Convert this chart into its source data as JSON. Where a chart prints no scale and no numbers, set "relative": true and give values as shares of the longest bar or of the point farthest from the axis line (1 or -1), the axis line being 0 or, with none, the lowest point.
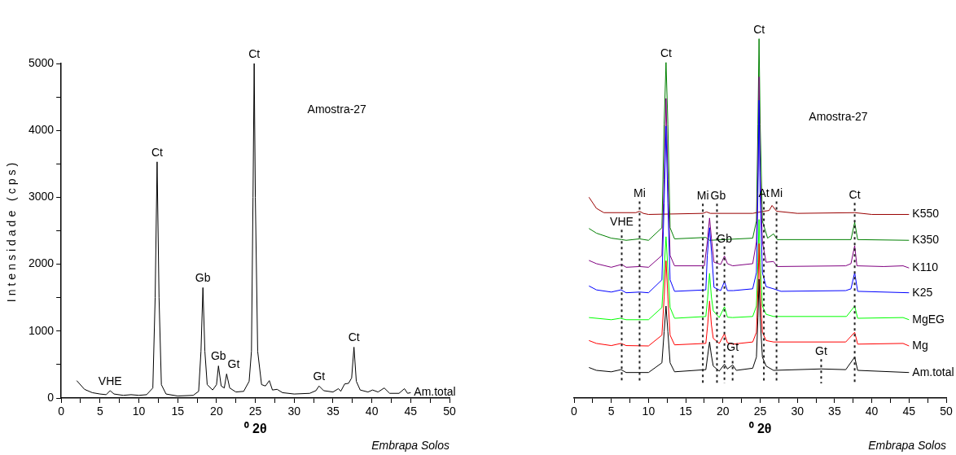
{
  "chart_data": [
    {
      "type": "line",
      "xlabel": "⁰ 2θ",
      "ylabel": "Intensidade (cps)",
      "xlim": [
        0,
        50
      ],
      "ylim": [
        0,
        5000
      ],
      "xticks": [
        0,
        {
          "value": 2.5,
          "label": null
        },
        5,
        {
          "value": 7.5,
          "label": null
        },
        10,
        {
          "value": 12.5,
          "label": null
        },
        15,
        {
          "value": 17.5,
          "label": null
        },
        20,
        {
          "value": 22.5,
          "label": null
        },
        25,
        {
          "value": 27.5,
          "label": null
        },
        30,
        {
          "value": 32.5,
          "label": null
        },
        35,
        {
          "value": 37.5,
          "label": null
        },
        40,
        {
          "value": 42.5,
          "label": null
        },
        45,
        {
          "value": 47.5,
          "label": null
        },
        50
      ],
      "yticks": [
        0,
        {
          "value": 500,
          "label": null
        },
        1000,
        {
          "value": 1500,
          "label": null
        },
        2000,
        {
          "value": 2500,
          "label": null
        },
        3000,
        {
          "value": 3500,
          "label": null
        },
        4000,
        {
          "value": 4500,
          "label": null
        },
        5000
      ],
      "grid": false,
      "legend": false,
      "marker": "none",
      "line_style": "solid",
      "series": [
        {
          "name": "Am.total",
          "color": "#000000",
          "x": [
            2,
            3,
            4,
            5,
            5.8,
            6.3,
            6.8,
            8,
            9,
            10,
            11,
            11.8,
            12.1,
            12.35,
            12.6,
            12.9,
            13.5,
            15,
            17,
            17.7,
            18,
            18.25,
            18.5,
            18.8,
            19.5,
            20,
            20.25,
            20.6,
            21,
            21.3,
            21.7,
            22.5,
            23.5,
            24.2,
            24.5,
            24.7,
            24.85,
            25,
            25.3,
            25.8,
            26.3,
            26.8,
            27.2,
            27.8,
            28.5,
            30,
            32,
            32.8,
            33.2,
            33.8,
            35,
            35.7,
            36,
            36.5,
            37,
            37.4,
            37.7,
            38,
            38.5,
            39.5,
            40.1,
            40.8,
            41.6,
            42.3,
            43.5,
            44.2,
            44.6,
            45
          ],
          "values": [
            260,
            130,
            80,
            60,
            50,
            110,
            60,
            40,
            50,
            40,
            50,
            150,
            1500,
            3530,
            1500,
            200,
            60,
            30,
            40,
            100,
            700,
            1650,
            700,
            200,
            120,
            200,
            480,
            180,
            150,
            360,
            150,
            90,
            100,
            250,
            700,
            3000,
            5000,
            3000,
            700,
            200,
            180,
            260,
            120,
            130,
            80,
            60,
            70,
            110,
            180,
            110,
            90,
            140,
            100,
            210,
            220,
            300,
            760,
            250,
            120,
            90,
            120,
            90,
            150,
            70,
            70,
            140,
            70,
            80
          ]
        }
      ],
      "annotations": [
        "Amostra-27",
        "Embrapa Solos",
        {
          "text": "VHE",
          "x": 6.3,
          "y": 110
        },
        {
          "text": "Ct",
          "x": 12.35,
          "y": 3530
        },
        {
          "text": "Gb",
          "x": 18.25,
          "y": 1650
        },
        {
          "text": "Gb",
          "x": 20.25,
          "y": 480
        },
        {
          "text": "Gt",
          "x": 21.3,
          "y": 360
        },
        {
          "text": "Ct",
          "x": 24.85,
          "y": 5000
        },
        {
          "text": "Gt",
          "x": 33.2,
          "y": 180
        },
        {
          "text": "Ct",
          "x": 37.7,
          "y": 760
        }
      ]
    },
    {
      "type": "line",
      "xlabel": "⁰ 2θ",
      "relative": true,
      "xlim": [
        0,
        50
      ],
      "xticks": [
        0,
        {
          "value": 2.5,
          "label": null
        },
        5,
        {
          "value": 7.5,
          "label": null
        },
        10,
        {
          "value": 12.5,
          "label": null
        },
        15,
        {
          "value": 17.5,
          "label": null
        },
        20,
        {
          "value": 22.5,
          "label": null
        },
        25,
        {
          "value": 27.5,
          "label": null
        },
        30,
        {
          "value": 32.5,
          "label": null
        },
        35,
        {
          "value": 37.5,
          "label": null
        },
        40,
        {
          "value": 42.5,
          "label": null
        },
        45,
        {
          "value": 47.5,
          "label": null
        },
        50
      ],
      "grid": false,
      "legend": false,
      "marker": "none",
      "line_style": "solid",
      "series": [
        {
          "name": "K550",
          "color": "#990000",
          "x": [
            2,
            3,
            4,
            8.3,
            8.8,
            9.3,
            10,
            17.3,
            17.8,
            18.3,
            19.2,
            24,
            25.5,
            26.2,
            26.6,
            27.2,
            30,
            37.7,
            40,
            45
          ],
          "values": [
            0.559,
            0.528,
            0.516,
            0.516,
            0.52,
            0.514,
            0.511,
            0.514,
            0.518,
            0.514,
            0.514,
            0.514,
            0.52,
            0.522,
            0.536,
            0.52,
            0.514,
            0.516,
            0.511,
            0.511
          ]
        },
        {
          "name": "K350",
          "color": "#008000",
          "x": [
            2,
            3,
            5,
            6.4,
            7,
            8.8,
            10,
            11.8,
            12.1,
            12.35,
            12.6,
            12.9,
            13.5,
            17.7,
            18.2,
            24,
            24.5,
            24.7,
            24.85,
            25,
            25.3,
            26,
            26.8,
            27.3,
            37.2,
            37.7,
            38.1,
            45
          ],
          "values": [
            0.472,
            0.459,
            0.445,
            0.441,
            0.439,
            0.443,
            0.439,
            0.474,
            0.763,
            0.934,
            0.763,
            0.474,
            0.443,
            0.447,
            0.439,
            0.445,
            0.493,
            0.763,
            1,
            0.763,
            0.493,
            0.445,
            0.457,
            0.441,
            0.441,
            0.489,
            0.441,
            0.439
          ]
        },
        {
          "name": "K110",
          "color": "#800080",
          "x": [
            2,
            3,
            5,
            6.4,
            7,
            8.8,
            10,
            11.8,
            12.1,
            12.35,
            12.6,
            12.9,
            13.5,
            17.5,
            17.9,
            18.2,
            18.5,
            18.8,
            19.7,
            20.2,
            20.6,
            21.3,
            24,
            24.5,
            24.7,
            24.85,
            25,
            25.3,
            25.8,
            26.8,
            27.3,
            36.5,
            37.2,
            37.7,
            38,
            41.6,
            44.2,
            45
          ],
          "values": [
            0.383,
            0.374,
            0.364,
            0.372,
            0.364,
            0.366,
            0.364,
            0.397,
            0.609,
            0.834,
            0.609,
            0.397,
            0.368,
            0.368,
            0.435,
            0.501,
            0.435,
            0.378,
            0.372,
            0.395,
            0.374,
            0.368,
            0.374,
            0.435,
            0.628,
            0.894,
            0.628,
            0.435,
            0.378,
            0.38,
            0.366,
            0.368,
            0.374,
            0.424,
            0.368,
            0.366,
            0.368,
            0.362
          ]
        },
        {
          "name": "K25",
          "color": "#0000ff",
          "x": [
            2,
            3,
            5,
            6.3,
            7,
            8.8,
            10,
            11.8,
            12.1,
            12.35,
            12.6,
            12.9,
            13.5,
            17.7,
            17.9,
            18.2,
            18.5,
            18.8,
            19.7,
            20.2,
            20.6,
            21.4,
            24,
            24.5,
            24.7,
            24.85,
            25,
            25.3,
            25.8,
            26.8,
            27.8,
            36.5,
            37.2,
            37.7,
            38.1,
            45
          ],
          "values": [
            0.312,
            0.301,
            0.295,
            0.301,
            0.293,
            0.295,
            0.293,
            0.329,
            0.543,
            0.757,
            0.543,
            0.329,
            0.297,
            0.301,
            0.397,
            0.474,
            0.397,
            0.308,
            0.299,
            0.324,
            0.299,
            0.299,
            0.304,
            0.349,
            0.57,
            0.829,
            0.57,
            0.349,
            0.31,
            0.304,
            0.297,
            0.299,
            0.304,
            0.349,
            0.297,
            0.293
          ]
        },
        {
          "name": "MgEG",
          "color": "#00ff00",
          "x": [
            2,
            5,
            6.2,
            7,
            10,
            11.8,
            12.1,
            12.35,
            12.6,
            12.9,
            13.5,
            17.7,
            17.95,
            18.2,
            18.45,
            18.7,
            19.5,
            20.2,
            20.6,
            21.3,
            24,
            24.5,
            24.7,
            24.85,
            25,
            25.3,
            25.8,
            26.8,
            36.6,
            37.7,
            38.1,
            44.2,
            45
          ],
          "values": [
            0.224,
            0.218,
            0.222,
            0.218,
            0.218,
            0.252,
            0.358,
            0.449,
            0.358,
            0.252,
            0.222,
            0.227,
            0.281,
            0.347,
            0.281,
            0.243,
            0.224,
            0.254,
            0.225,
            0.224,
            0.227,
            0.256,
            0.378,
            0.497,
            0.378,
            0.256,
            0.233,
            0.227,
            0.227,
            0.256,
            0.222,
            0.224,
            0.218
          ]
        },
        {
          "name": "Mg",
          "color": "#ff0000",
          "x": [
            2,
            3,
            5,
            6.3,
            7,
            10,
            11.8,
            12.1,
            12.35,
            12.6,
            12.9,
            13.5,
            17.7,
            17.95,
            18.2,
            18.45,
            18.7,
            19.5,
            20.2,
            20.6,
            21.3,
            24,
            24.5,
            24.7,
            24.85,
            25,
            25.3,
            25.8,
            26.8,
            36.5,
            37.7,
            38.1,
            44.2,
            45
          ],
          "values": [
            0.16,
            0.152,
            0.146,
            0.152,
            0.146,
            0.145,
            0.175,
            0.281,
            0.382,
            0.281,
            0.175,
            0.148,
            0.152,
            0.204,
            0.27,
            0.204,
            0.166,
            0.152,
            0.179,
            0.154,
            0.15,
            0.156,
            0.183,
            0.301,
            0.43,
            0.301,
            0.183,
            0.16,
            0.156,
            0.156,
            0.183,
            0.15,
            0.152,
            0.145
          ]
        },
        {
          "name": "Am.total",
          "color": "#000000",
          "x": [
            2,
            3,
            5,
            6.3,
            7,
            10,
            11.8,
            12.1,
            12.35,
            12.6,
            12.9,
            13.5,
            17.7,
            17.95,
            18.2,
            18.45,
            18.7,
            19.5,
            20.2,
            20.6,
            21.3,
            21.8,
            24,
            24.5,
            24.7,
            24.85,
            25,
            25.3,
            25.8,
            26.8,
            33.2,
            36.5,
            37.7,
            38.1,
            45
          ],
          "values": [
            0.085,
            0.077,
            0.073,
            0.079,
            0.071,
            0.071,
            0.098,
            0.185,
            0.256,
            0.185,
            0.098,
            0.073,
            0.079,
            0.118,
            0.156,
            0.118,
            0.089,
            0.075,
            0.094,
            0.081,
            0.092,
            0.077,
            0.083,
            0.114,
            0.224,
            0.331,
            0.224,
            0.114,
            0.089,
            0.077,
            0.081,
            0.079,
            0.114,
            0.077,
            0.071
          ]
        }
      ],
      "annotations": [
        "Amostra-27",
        "Embrapa Solos",
        {
          "text": "Ct",
          "x": 12.35,
          "y": 0.934
        },
        {
          "text": "Ct",
          "x": 24.85,
          "y": 1
        },
        {
          "text": "Mi",
          "x": 8.8,
          "y": 0.52
        },
        {
          "text": "Mi",
          "x": 17.3,
          "y": 0.514
        },
        {
          "text": "Gb",
          "x": 19.2,
          "y": 0.514
        },
        {
          "text": "At",
          "x": 25.5,
          "y": 0.52
        },
        {
          "text": "Mi",
          "x": 27.2,
          "y": 0.52
        },
        {
          "text": "Ct",
          "x": 37.7,
          "y": 0.516
        },
        {
          "text": "VHE",
          "x": 6.4,
          "y": 0.441
        },
        {
          "text": "Gb",
          "x": 20.2,
          "y": 0.395
        },
        {
          "text": "Gt",
          "x": 21.3,
          "y": 0.092
        },
        {
          "text": "Gt",
          "x": 33.2,
          "y": 0.081
        }
      ]
    }
  ]
}
